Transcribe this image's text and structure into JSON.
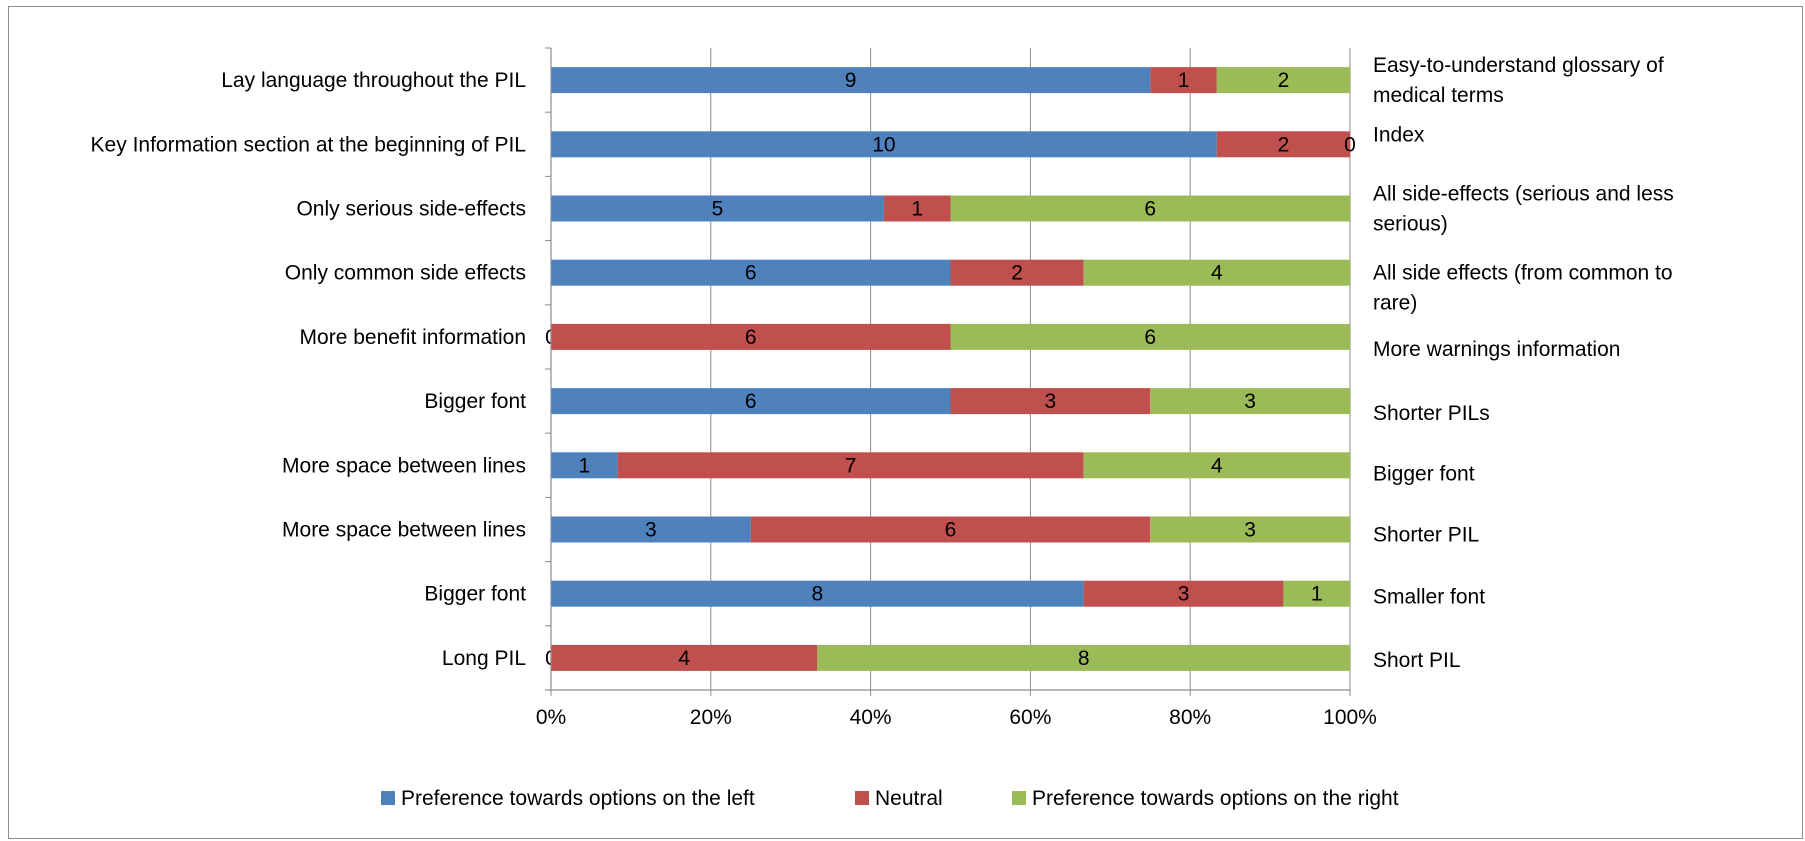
{
  "chart_data": {
    "type": "bar",
    "orientation": "horizontal",
    "stacked": "percent",
    "left_labels": [
      "Lay language throughout the PIL",
      "Key Information section at the beginning of PIL",
      "Only serious side-effects",
      "Only common side effects",
      "More benefit information",
      "Bigger font ",
      "More space between lines",
      "More space between lines",
      "Bigger font",
      "Long PIL"
    ],
    "right_labels": [
      "Easy-to-understand glossary of medical terms",
      "Index",
      "All side-effects  (serious and less serious)",
      "All side effects (from common to rare)",
      "More warnings information",
      "Shorter PILs",
      "Bigger font",
      "Shorter PIL",
      "Smaller font",
      "Short PIL"
    ],
    "series": [
      {
        "name": "Preference towards options on the left",
        "color": "#4f81bd",
        "values": [
          9,
          10,
          5,
          6,
          0,
          6,
          1,
          3,
          8,
          0
        ]
      },
      {
        "name": "Neutral",
        "color": "#c0504d",
        "values": [
          1,
          2,
          1,
          2,
          6,
          3,
          7,
          6,
          3,
          4
        ]
      },
      {
        "name": "Preference towards options on the right",
        "color": "#9bbb59",
        "values": [
          2,
          0,
          6,
          4,
          6,
          3,
          4,
          3,
          1,
          8
        ]
      }
    ],
    "xticks": [
      "0%",
      "20%",
      "40%",
      "60%",
      "80%",
      "100%"
    ],
    "xlim": [
      0,
      100
    ],
    "grid": true,
    "legend": "bottom"
  }
}
